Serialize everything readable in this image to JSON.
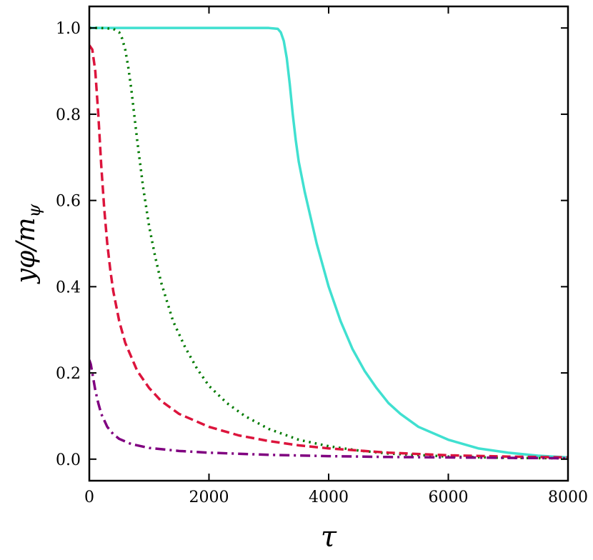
{
  "chart_data": {
    "type": "line",
    "xlabel": "τ",
    "ylabel": "yφ/m",
    "ylabel_sub": "ψ",
    "xlim": [
      0,
      8000
    ],
    "ylim": [
      -0.05,
      1.05
    ],
    "xticks": [
      0,
      2000,
      4000,
      6000,
      8000
    ],
    "xtick_labels": [
      "0",
      "2000",
      "4000",
      "6000",
      "8000"
    ],
    "yticks": [
      0.0,
      0.2,
      0.4,
      0.6,
      0.8,
      1.0
    ],
    "ytick_labels": [
      "0.0",
      "0.2",
      "0.4",
      "0.6",
      "0.8",
      "1.0"
    ],
    "grid": false,
    "series": [
      {
        "color": "#40E0D0",
        "dash": "solid",
        "x": [
          0,
          1000,
          2000,
          3000,
          3150,
          3200,
          3250,
          3300,
          3350,
          3400,
          3450,
          3500,
          3600,
          3700,
          3800,
          3900,
          4000,
          4200,
          4400,
          4600,
          4800,
          5000,
          5200,
          5500,
          6000,
          6500,
          7000,
          7500,
          8000
        ],
        "y": [
          1.0,
          1.0,
          1.0,
          1.0,
          0.998,
          0.99,
          0.97,
          0.93,
          0.87,
          0.8,
          0.74,
          0.69,
          0.62,
          0.56,
          0.5,
          0.45,
          0.4,
          0.32,
          0.255,
          0.205,
          0.165,
          0.13,
          0.105,
          0.075,
          0.045,
          0.025,
          0.015,
          0.008,
          0.004
        ]
      },
      {
        "color": "#007A00",
        "dash": "dotted",
        "x": [
          0,
          200,
          400,
          500,
          550,
          600,
          650,
          700,
          750,
          800,
          900,
          1000,
          1100,
          1200,
          1400,
          1600,
          1800,
          2000,
          2300,
          2600,
          3000,
          3500,
          4000,
          4500,
          5000,
          6000,
          7000,
          8000
        ],
        "y": [
          1.0,
          1.0,
          0.998,
          0.99,
          0.975,
          0.95,
          0.91,
          0.86,
          0.8,
          0.74,
          0.63,
          0.54,
          0.47,
          0.41,
          0.32,
          0.26,
          0.21,
          0.17,
          0.13,
          0.1,
          0.07,
          0.045,
          0.03,
          0.02,
          0.013,
          0.006,
          0.003,
          0.002
        ]
      },
      {
        "color": "#DC143C",
        "dash": "dashed",
        "x": [
          0,
          50,
          100,
          150,
          200,
          250,
          300,
          350,
          400,
          500,
          600,
          800,
          1000,
          1200,
          1500,
          2000,
          2500,
          3000,
          3500,
          4000,
          5000,
          6000,
          7000,
          8000
        ],
        "y": [
          0.96,
          0.95,
          0.9,
          0.8,
          0.68,
          0.58,
          0.5,
          0.44,
          0.39,
          0.32,
          0.27,
          0.205,
          0.165,
          0.135,
          0.105,
          0.075,
          0.055,
          0.042,
          0.032,
          0.025,
          0.015,
          0.009,
          0.006,
          0.004
        ]
      },
      {
        "color": "#800080",
        "dash": "dashdot",
        "x": [
          0,
          25,
          50,
          100,
          150,
          200,
          300,
          400,
          500,
          700,
          1000,
          1500,
          2000,
          3000,
          4000,
          5000,
          6000,
          7000,
          8000
        ],
        "y": [
          0.23,
          0.22,
          0.2,
          0.16,
          0.13,
          0.105,
          0.075,
          0.058,
          0.047,
          0.035,
          0.026,
          0.019,
          0.015,
          0.01,
          0.007,
          0.005,
          0.004,
          0.003,
          0.002
        ]
      }
    ]
  }
}
